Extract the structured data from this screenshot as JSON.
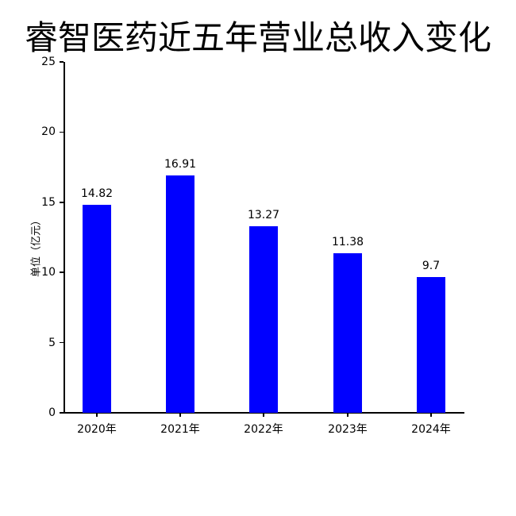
{
  "chart_data": {
    "type": "bar",
    "title": "睿智医药近五年营业总收入变化",
    "xlabel": "",
    "ylabel": "单位（亿元）",
    "categories": [
      "2020年",
      "2021年",
      "2022年",
      "2023年",
      "2024年"
    ],
    "values": [
      14.82,
      16.91,
      13.27,
      11.38,
      9.7
    ],
    "value_labels": [
      "14.82",
      "16.91",
      "13.27",
      "11.38",
      "9.7"
    ],
    "ylim": [
      0,
      25
    ],
    "yticks": [
      0,
      5,
      10,
      15,
      20,
      25
    ],
    "grid": false,
    "legend": null,
    "bar_color": "#0000ff"
  },
  "title": "睿智医药近五年营业总收入变化",
  "ylabel": "单位（亿元）"
}
